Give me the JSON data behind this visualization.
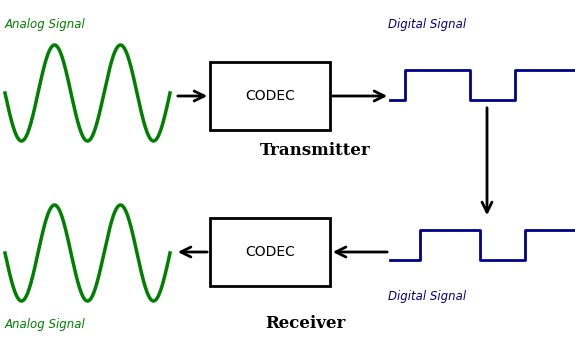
{
  "bg_color": "#ffffff",
  "analog_color": "#008000",
  "digital_color": "#00008B",
  "arrow_color": "#000000",
  "box_color": "#000000",
  "text_label_color_analog": "#008000",
  "text_label_color_digital": "#00008B",
  "analog_signal_label_top": "Analog Signal",
  "analog_signal_label_bottom": "Analog Signal",
  "digital_signal_label_top": "Digital Signal",
  "digital_signal_label_bottom": "Digital Signal",
  "transmitter_label": "Transmitter",
  "receiver_label": "Receiver",
  "codec_label": "CODEC",
  "fig_width": 5.75,
  "fig_height": 3.47,
  "dpi": 100
}
